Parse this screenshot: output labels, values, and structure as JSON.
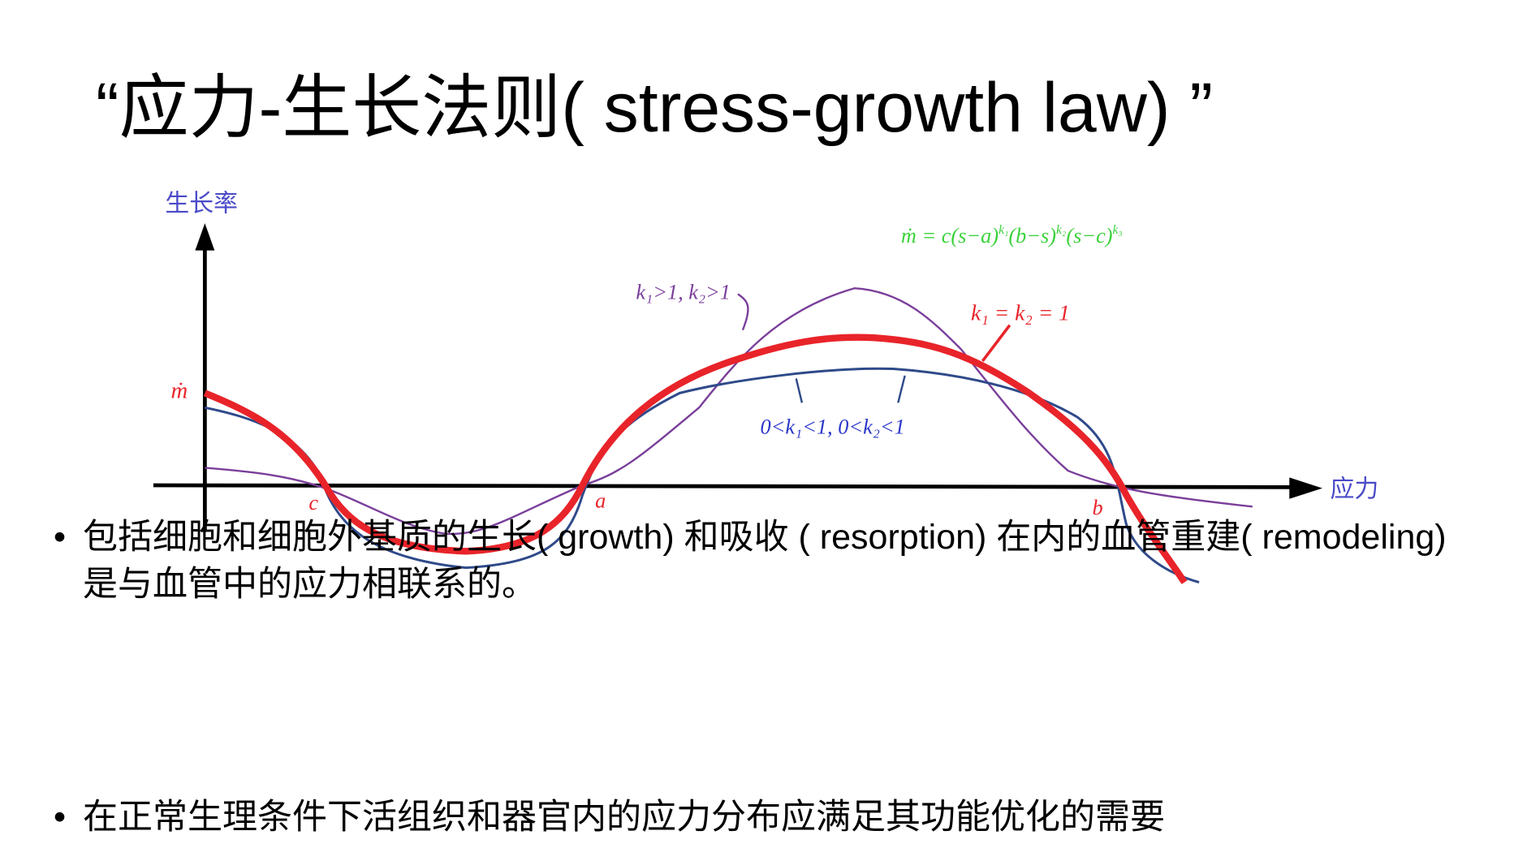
{
  "title": "“应力-生长法则( stress-growth law) ”",
  "figure": {
    "y_axis_label": "生长率",
    "x_axis_label": "应力",
    "origin_label": "ṁ",
    "point_labels": [
      "c",
      "a",
      "b"
    ],
    "formula_parts": [
      "ṁ = c(s−a)",
      "k₁",
      "(b−s)",
      "k₂",
      "(s−c)",
      "k₃"
    ],
    "curve_labels": [
      "k₁>1, k₂>1",
      "k₁ = k₂ = 1",
      "0<k₁<1, 0<k₂<1"
    ]
  },
  "bullets": [
    "包括细胞和细胞外基质的生长( growth) 和吸收 ( resorption) 在内的血管重建( remodeling) 是与血管中的应力相联系的。",
    "在正常生理条件下活组织和器官内的应力分布应满足其功能优化的需要"
  ]
}
